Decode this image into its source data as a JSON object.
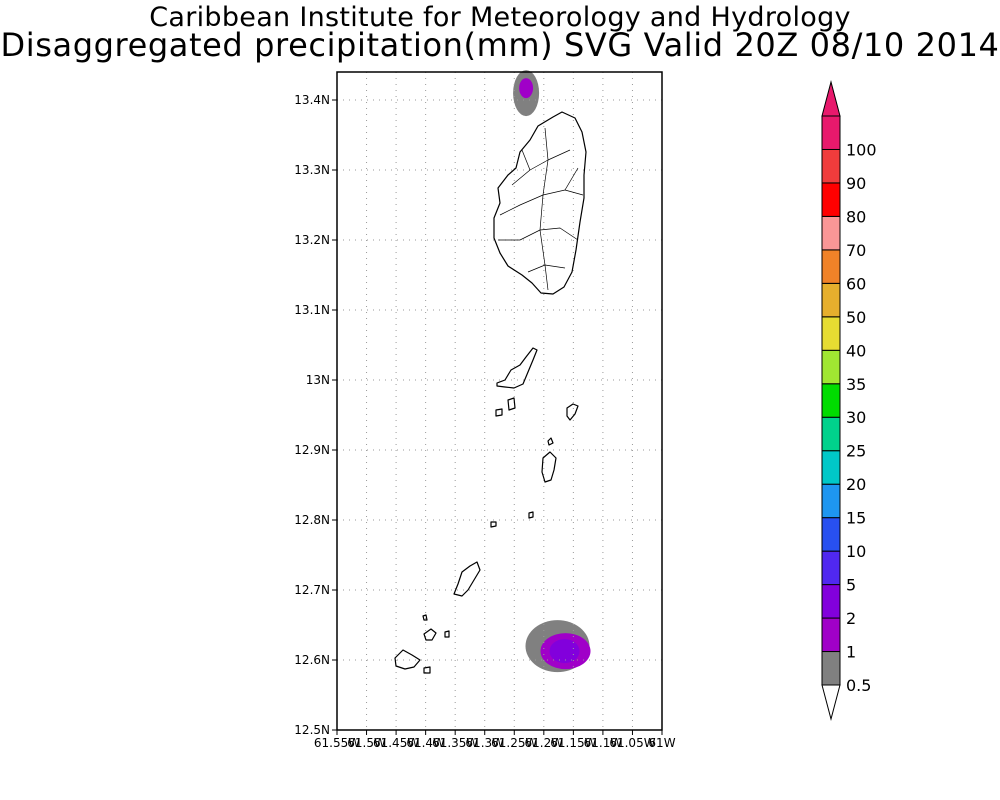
{
  "title": {
    "line1": "Caribbean Institute for Meteorology and Hydrology",
    "line2": "Disaggregated precipitation(mm) SVG Valid 20Z 08/10 2014"
  },
  "map": {
    "lat_labels": [
      "13.4N",
      "13.3N",
      "13.2N",
      "13.1N",
      "13N",
      "12.9N",
      "12.8N",
      "12.7N",
      "12.6N",
      "12.5N"
    ],
    "lat_values": [
      13.4,
      13.3,
      13.2,
      13.1,
      13.0,
      12.9,
      12.8,
      12.7,
      12.6,
      12.5
    ],
    "lon_labels": [
      "61.55W",
      "61.5W",
      "61.45W",
      "61.4W",
      "61.35W",
      "61.3W",
      "61.25W",
      "61.2W",
      "61.15W",
      "61.1W",
      "61.05W",
      "61W"
    ],
    "lon_values": [
      -61.55,
      -61.5,
      -61.45,
      -61.4,
      -61.35,
      -61.3,
      -61.25,
      -61.2,
      -61.15,
      -61.1,
      -61.05,
      -61.0
    ],
    "lat_range": [
      12.5,
      13.44
    ],
    "lon_range": [
      -61.55,
      -61.0
    ],
    "grid": true,
    "precip_areas": [
      {
        "name": "north",
        "lon": -61.23,
        "lat": 13.417,
        "levels": [
          "0.5",
          "1"
        ]
      },
      {
        "name": "south",
        "lon": -61.165,
        "lat": 12.617,
        "levels": [
          "0.5",
          "1",
          "2"
        ]
      }
    ]
  },
  "colorbar": {
    "labels": [
      "0.5",
      "1",
      "2",
      "5",
      "10",
      "15",
      "20",
      "25",
      "30",
      "35",
      "40",
      "50",
      "60",
      "70",
      "80",
      "90",
      "100"
    ],
    "colors": [
      "#808080",
      "#a000c8",
      "#8200dc",
      "#5028f0",
      "#2850f0",
      "#1e96f0",
      "#00c8c8",
      "#00d28c",
      "#00dc00",
      "#a0e632",
      "#e6dc32",
      "#e6af2d",
      "#f08228",
      "#fa9696",
      "#ff0000",
      "#f03c3c",
      "#e8196c"
    ],
    "under_color": "#ffffff"
  }
}
